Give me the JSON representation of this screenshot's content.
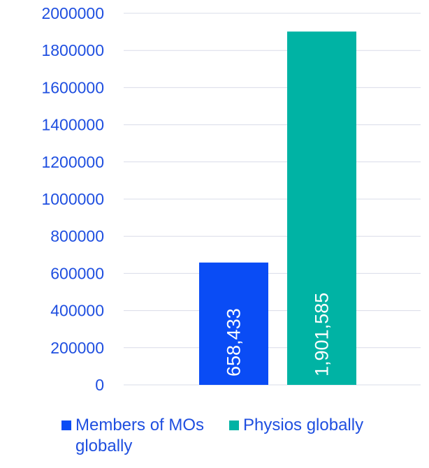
{
  "chart_data": {
    "type": "bar",
    "categories": [
      "Members of MOs globally",
      "Physios globally"
    ],
    "values": [
      658433,
      1901585
    ],
    "data_labels": [
      "658,433",
      "1,901,585"
    ],
    "colors": [
      "#0a4cf5",
      "#00b3a4"
    ],
    "ylim": [
      0,
      2000000
    ],
    "yticks": [
      0,
      200000,
      400000,
      600000,
      800000,
      1000000,
      1200000,
      1400000,
      1600000,
      1800000,
      2000000
    ],
    "grid": true,
    "legend_position": "bottom",
    "title": "",
    "xlabel": "",
    "ylabel": "",
    "axis_text_color": "#1f4fe0",
    "grid_color": "#d9dce8"
  },
  "legend": {
    "items": [
      {
        "label": "Members of MOs globally",
        "color": "#0a4cf5"
      },
      {
        "label": "Physios globally",
        "color": "#00b3a4"
      }
    ]
  }
}
